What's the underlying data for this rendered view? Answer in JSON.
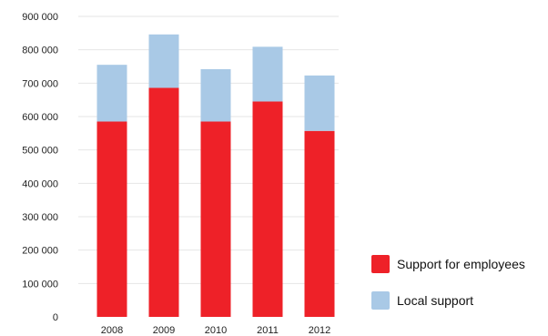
{
  "chart_data": {
    "type": "bar",
    "stacked": true,
    "categories": [
      "2008",
      "2009",
      "2010",
      "2011",
      "2012"
    ],
    "series": [
      {
        "name": "Support for employees",
        "color": "#ee2128",
        "values": [
          585000,
          686000,
          585000,
          645000,
          557000
        ]
      },
      {
        "name": "Local support",
        "color": "#a9c9e6",
        "values": [
          170000,
          160000,
          157000,
          164000,
          166000
        ]
      }
    ],
    "ylim": [
      0,
      900000
    ],
    "yticks": [
      0,
      100000,
      200000,
      300000,
      400000,
      500000,
      600000,
      700000,
      800000,
      900000
    ],
    "ytick_labels": [
      "0",
      "100 000",
      "200 000",
      "300 000",
      "400 000",
      "500 000",
      "600 000",
      "700 000",
      "800 000",
      "900 000"
    ],
    "grid": true,
    "legend": "right"
  }
}
